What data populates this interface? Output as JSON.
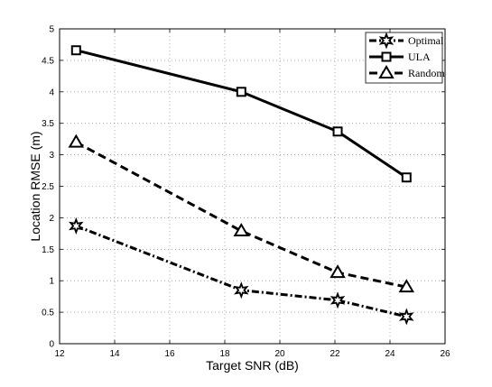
{
  "chart_data": {
    "type": "line",
    "xlabel": "Target SNR (dB)",
    "ylabel": "Location RMSE (m)",
    "xlim": [
      12,
      26
    ],
    "ylim": [
      0,
      5
    ],
    "xticks": [
      12,
      14,
      16,
      18,
      20,
      22,
      24,
      26
    ],
    "yticks": [
      0,
      0.5,
      1,
      1.5,
      2,
      2.5,
      3,
      3.5,
      4,
      4.5,
      5
    ],
    "grid": true,
    "legend_position": "top-right",
    "series": [
      {
        "name": "Optimal",
        "x": [
          12.6,
          18.6,
          22.1,
          24.6
        ],
        "y": [
          1.87,
          0.85,
          0.69,
          0.43
        ],
        "line_style": "dash-dot",
        "marker": "star"
      },
      {
        "name": "ULA",
        "x": [
          12.6,
          18.6,
          22.1,
          24.6
        ],
        "y": [
          4.66,
          4.0,
          3.37,
          2.64
        ],
        "line_style": "solid",
        "marker": "square"
      },
      {
        "name": "Random",
        "x": [
          12.6,
          18.6,
          22.1,
          24.6
        ],
        "y": [
          3.2,
          1.79,
          1.13,
          0.9
        ],
        "line_style": "dashed",
        "marker": "triangle"
      }
    ]
  }
}
